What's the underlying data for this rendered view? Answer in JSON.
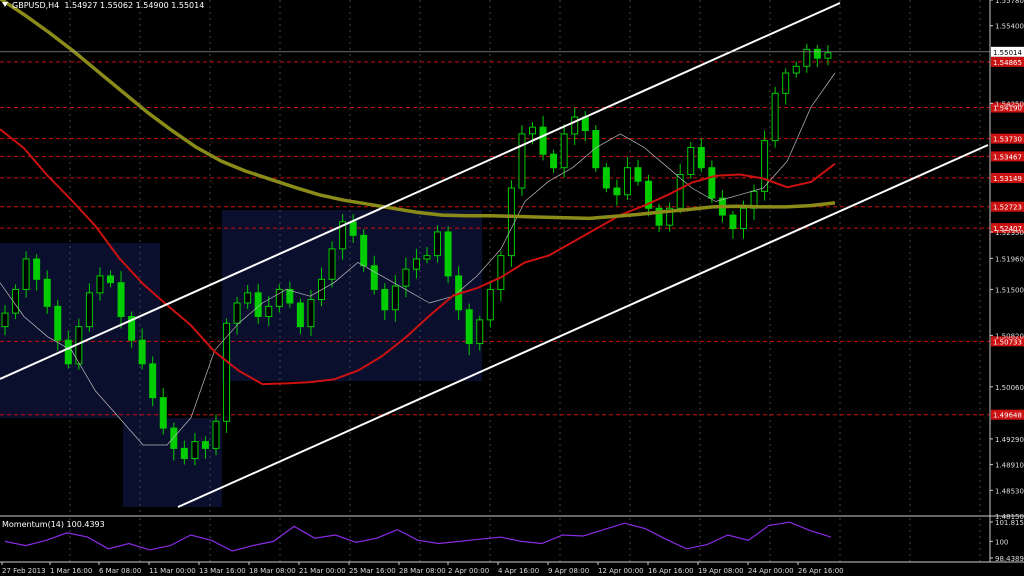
{
  "header": {
    "symbol": "GBPUSD,H4",
    "ohlc": "1.54927 1.55062 1.54900 1.55014"
  },
  "momentum": {
    "label": "Momentum(14) 100.4393",
    "ticks": [
      "101.8151",
      "100",
      "98.4389"
    ]
  },
  "colors": {
    "background": "#000000",
    "bullish": "#00cc00",
    "bearish": "#00cc00",
    "ma_slow": "#8b8b1a",
    "ma_mid": "#cc1111",
    "ma_fast": "#bbbbbb",
    "channel": "#ffffff",
    "levels": "#cc1111",
    "momentum": "#8a2be2",
    "zones": "#0b0f2e"
  },
  "chart_data": {
    "type": "candlestick",
    "title": "GBPUSD,H4",
    "ylim": [
      1.4815,
      1.5578
    ],
    "price_ticks": [
      "1.55780",
      "1.55400",
      "1.54250",
      "1.52350",
      "1.51960",
      "1.51500",
      "1.50820",
      "1.50060",
      "1.49290",
      "1.48910",
      "1.48530",
      "1.48150"
    ],
    "current_price": "1.55014",
    "levels": [
      "1.54865",
      "1.54190",
      "1.53730",
      "1.53467",
      "1.53149",
      "1.52723",
      "1.52407",
      "1.50733",
      "1.49648"
    ],
    "x_labels": [
      "27 Feb 2013",
      "1 Mar 16:00",
      "6 Mar 08:00",
      "11 Mar 00:00",
      "13 Mar 16:00",
      "18 Mar 08:00",
      "21 Mar 00:00",
      "25 Mar 16:00",
      "28 Mar 08:00",
      "2 Apr 00:00",
      "4 Apr 16:00",
      "9 Apr 08:00",
      "12 Apr 00:00",
      "16 Apr 16:00",
      "19 Apr 08:00",
      "24 Apr 00:00",
      "26 Apr 16:00"
    ],
    "closes": [
      1.5115,
      1.515,
      1.5195,
      1.5165,
      1.5125,
      1.5075,
      1.504,
      1.5095,
      1.5145,
      1.517,
      1.516,
      1.511,
      1.5075,
      1.504,
      1.499,
      1.4945,
      1.4915,
      1.49,
      1.4925,
      1.4915,
      1.4955,
      1.51,
      1.513,
      1.5145,
      1.511,
      1.5125,
      1.515,
      1.513,
      1.5095,
      1.5135,
      1.5165,
      1.521,
      1.525,
      1.523,
      1.5185,
      1.515,
      1.512,
      1.5155,
      1.518,
      1.5195,
      1.52,
      1.5235,
      1.517,
      1.512,
      1.507,
      1.5105,
      1.515,
      1.52,
      1.53,
      1.538,
      1.539,
      1.535,
      1.533,
      1.538,
      1.5405,
      1.5385,
      1.533,
      1.53,
      1.529,
      1.533,
      1.531,
      1.527,
      1.5245,
      1.527,
      1.532,
      1.536,
      1.533,
      1.5285,
      1.526,
      1.524,
      1.527,
      1.5295,
      1.537,
      1.544,
      1.547,
      1.548,
      1.5505,
      1.5492,
      1.55
    ],
    "ma_slow": [
      1.558,
      1.5556,
      1.553,
      1.5502,
      1.5472,
      1.5442,
      1.5412,
      1.5385,
      1.536,
      1.534,
      1.5325,
      1.5313,
      1.5301,
      1.529,
      1.5282,
      1.5276,
      1.527,
      1.5264,
      1.526,
      1.5259,
      1.5259,
      1.5258,
      1.5257,
      1.5256,
      1.5255,
      1.5258,
      1.5261,
      1.5265,
      1.5268,
      1.5272,
      1.5273,
      1.5272,
      1.5272,
      1.5274,
      1.5278
    ],
    "ma_mid": [
      1.5387,
      1.5359,
      1.5318,
      1.5282,
      1.5244,
      1.5196,
      1.5158,
      1.5127,
      1.5097,
      1.5058,
      1.503,
      1.501,
      1.5011,
      1.5013,
      1.5017,
      1.503,
      1.5051,
      1.5079,
      1.5111,
      1.5141,
      1.5152,
      1.5168,
      1.519,
      1.52,
      1.522,
      1.524,
      1.526,
      1.5274,
      1.529,
      1.5308,
      1.5318,
      1.532,
      1.5314,
      1.5301,
      1.5309,
      1.5336
    ],
    "ma_fast": [
      1.516,
      1.511,
      1.508,
      1.506,
      1.5,
      1.496,
      1.492,
      1.492,
      1.496,
      1.506,
      1.51,
      1.513,
      1.515,
      1.514,
      1.516,
      1.519,
      1.517,
      1.515,
      1.513,
      1.514,
      1.517,
      1.521,
      1.528,
      1.531,
      1.533,
      1.536,
      1.538,
      1.536,
      1.533,
      1.53,
      1.528,
      1.529,
      1.53,
      1.534,
      1.542,
      1.547
    ],
    "momentum": [
      100.0,
      99.6,
      100.1,
      100.8,
      100.4,
      99.3,
      99.8,
      99.2,
      99.6,
      100.6,
      100.1,
      99.1,
      99.6,
      100.0,
      101.4,
      100.3,
      100.6,
      99.9,
      100.3,
      101.1,
      100.1,
      99.8,
      100.0,
      100.2,
      100.4,
      100.0,
      99.8,
      100.6,
      100.5,
      101.1,
      101.7,
      101.2,
      100.2,
      99.3,
      99.7,
      100.6,
      100.1,
      101.5,
      101.8,
      101.0,
      100.4
    ]
  }
}
